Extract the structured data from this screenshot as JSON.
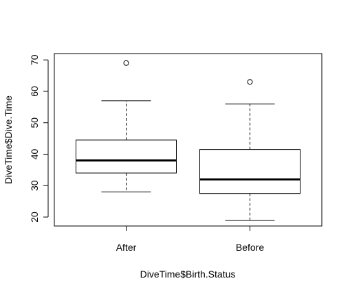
{
  "chart_data": {
    "type": "boxplot",
    "title": "",
    "xlabel": "DiveTime$Birth.Status",
    "ylabel": "DiveTime$Dive.Time",
    "ylim": [
      17,
      71
    ],
    "yticks": [
      20,
      30,
      40,
      50,
      60,
      70
    ],
    "categories": [
      "After",
      "Before"
    ],
    "boxes": [
      {
        "category": "After",
        "whisker_low": 28,
        "q1": 34,
        "median": 38,
        "q3": 44.5,
        "whisker_high": 57,
        "outliers": [
          69
        ]
      },
      {
        "category": "Before",
        "whisker_low": 19,
        "q1": 27.5,
        "median": 32,
        "q3": 41.5,
        "whisker_high": 56,
        "outliers": [
          63
        ]
      }
    ],
    "grid": false,
    "legend": "none"
  }
}
